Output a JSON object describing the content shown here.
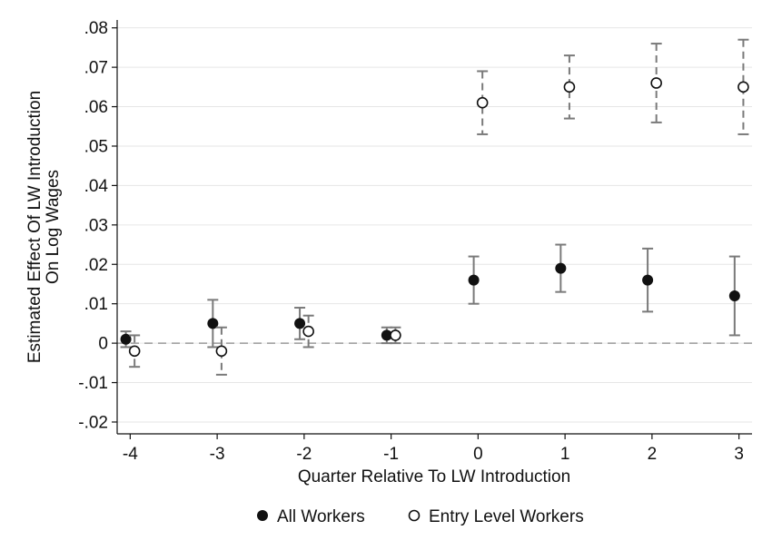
{
  "chart_data": {
    "type": "scatter",
    "x": [
      -4,
      -3,
      -2,
      -1,
      0,
      1,
      2,
      3
    ],
    "xlabel": "Quarter Relative To LW Introduction",
    "ylabel": [
      "Estimated Effect Of LW Introduction",
      "On Log Wages"
    ],
    "xlim": [
      -4.15,
      3.15
    ],
    "ylim": [
      -0.023,
      0.082
    ],
    "x_ticks": [
      "-4",
      "-3",
      "-2",
      "-1",
      "0",
      "1",
      "2",
      "3"
    ],
    "y_ticks": [
      {
        "value": 0.08,
        "label": ".08"
      },
      {
        "value": 0.07,
        "label": ".07"
      },
      {
        "value": 0.06,
        "label": ".06"
      },
      {
        "value": 0.05,
        "label": ".05"
      },
      {
        "value": 0.04,
        "label": ".04"
      },
      {
        "value": 0.03,
        "label": ".03"
      },
      {
        "value": 0.02,
        "label": ".02"
      },
      {
        "value": 0.01,
        "label": ".01"
      },
      {
        "value": 0,
        "label": "0"
      },
      {
        "value": -0.01,
        "label": "-.01"
      },
      {
        "value": -0.02,
        "label": "-.02"
      }
    ],
    "grid": true,
    "reference_line_y": 0,
    "legend_position": "bottom",
    "series": [
      {
        "name": "All Workers",
        "marker": "filled-circle",
        "color": "#111111",
        "errorbar_style": "solid",
        "values": [
          0.001,
          0.005,
          0.005,
          0.002,
          0.016,
          0.019,
          0.016,
          0.012
        ],
        "ci_low": [
          -0.001,
          -0.001,
          0.001,
          0.0,
          0.01,
          0.013,
          0.008,
          0.002
        ],
        "ci_high": [
          0.003,
          0.011,
          0.009,
          0.004,
          0.022,
          0.025,
          0.024,
          0.022
        ]
      },
      {
        "name": "Entry Level Workers",
        "marker": "hollow-circle",
        "color": "#111111",
        "errorbar_style": "dashed",
        "values": [
          -0.002,
          -0.002,
          0.003,
          0.002,
          0.061,
          0.065,
          0.066,
          0.065
        ],
        "ci_low": [
          -0.006,
          -0.008,
          -0.001,
          0.0,
          0.053,
          0.057,
          0.056,
          0.053
        ],
        "ci_high": [
          0.002,
          0.004,
          0.007,
          0.004,
          0.069,
          0.073,
          0.076,
          0.077
        ]
      }
    ]
  },
  "colors": {
    "errorbar": "#7a7a7a",
    "grid": "#e6e6e6",
    "axis": "#111111",
    "reference_line": "#9a9a9a"
  }
}
